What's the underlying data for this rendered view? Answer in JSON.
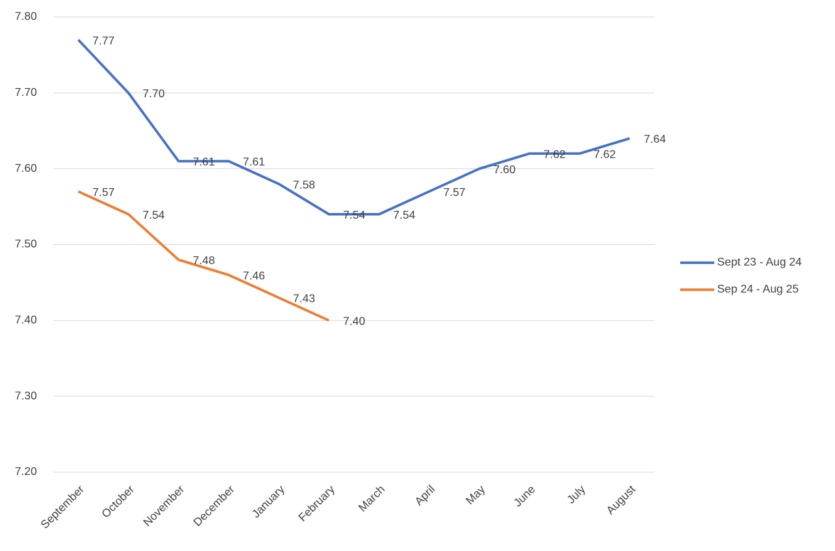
{
  "chart_data": {
    "type": "line",
    "categories": [
      "September",
      "October",
      "November",
      "December",
      "January",
      "February",
      "March",
      "April",
      "May",
      "June",
      "July",
      "August"
    ],
    "series": [
      {
        "name": "Sept 23 - Aug 24",
        "color": "#4472c4",
        "values": [
          7.77,
          7.7,
          7.61,
          7.61,
          7.58,
          7.54,
          7.54,
          7.57,
          7.6,
          7.62,
          7.62,
          7.64
        ],
        "value_labels": [
          "7.77",
          "7.70",
          "7.61",
          "7.61",
          "7.58",
          "7.54",
          "7.54",
          "7.57",
          "7.60",
          "7.62",
          "7.62",
          "7.64"
        ]
      },
      {
        "name": "Sep 24 - Aug 25",
        "color": "#ed7d31",
        "values": [
          7.57,
          7.54,
          7.48,
          7.46,
          7.43,
          7.4,
          null,
          null,
          null,
          null,
          null,
          null
        ],
        "value_labels": [
          "7.57",
          "7.54",
          "7.48",
          "7.46",
          "7.43",
          "7.40",
          null,
          null,
          null,
          null,
          null,
          null
        ]
      }
    ],
    "ylim": [
      7.2,
      7.8
    ],
    "yticks": [
      {
        "value": 7.2,
        "label": "7.20"
      },
      {
        "value": 7.3,
        "label": "7.30"
      },
      {
        "value": 7.4,
        "label": "7.40"
      },
      {
        "value": 7.5,
        "label": "7.50"
      },
      {
        "value": 7.6,
        "label": "7.60"
      },
      {
        "value": 7.7,
        "label": "7.70"
      },
      {
        "value": 7.8,
        "label": "7.80"
      }
    ],
    "grid": true,
    "legend": "right"
  }
}
